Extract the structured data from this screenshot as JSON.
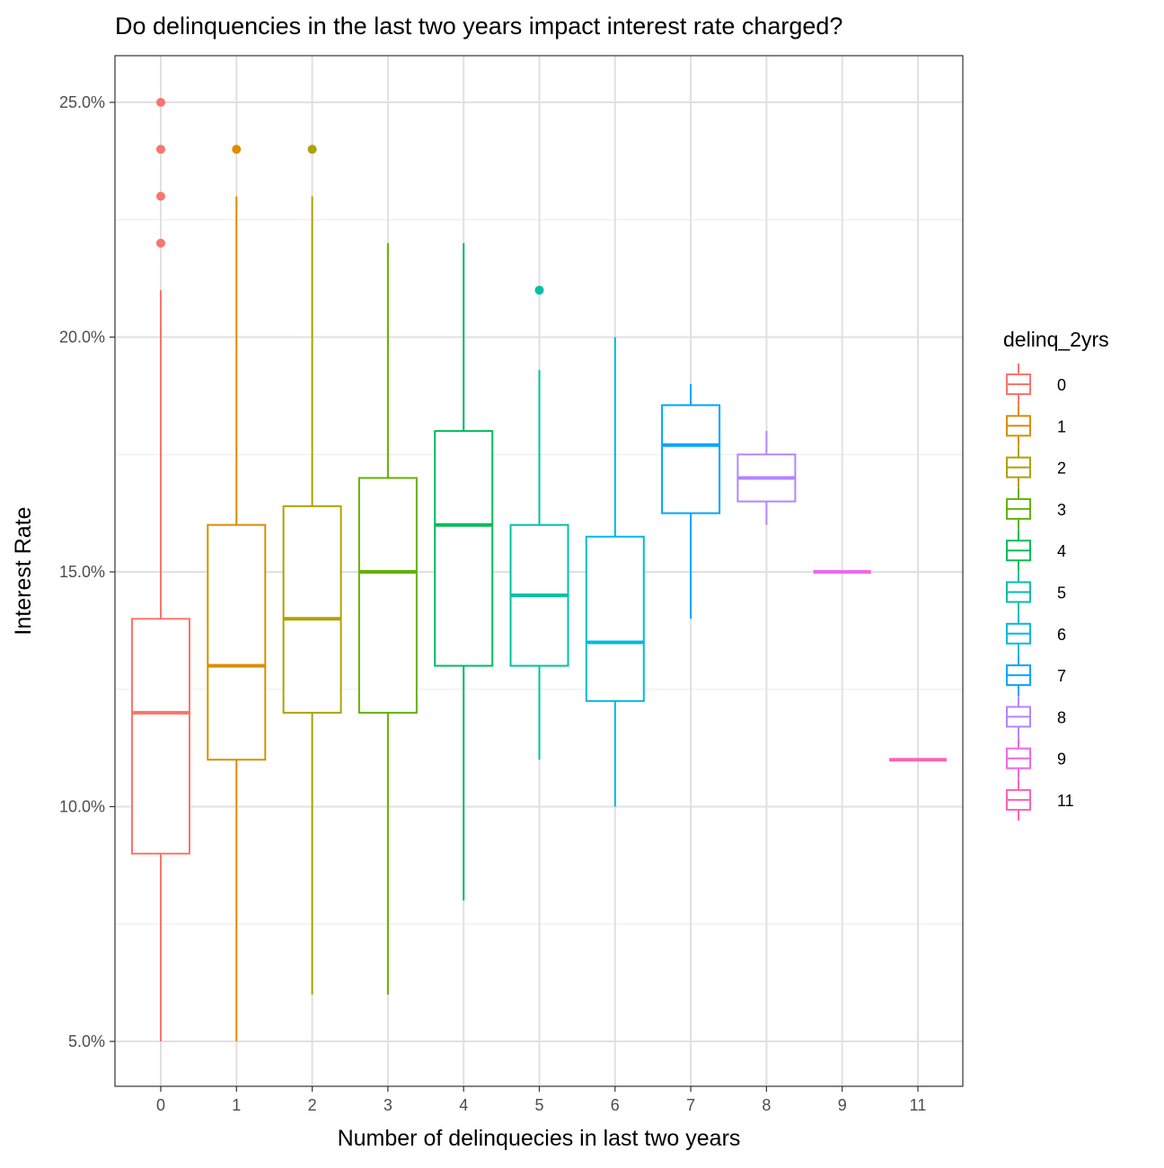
{
  "chart_data": {
    "type": "boxplot",
    "title": "Do delinquencies in the last two years impact interest rate charged?",
    "xlabel": "Number of delinquecies in last two years",
    "ylabel": "Interest Rate",
    "ylim": [
      4.0,
      26.0
    ],
    "yticks": [
      5,
      10,
      15,
      20,
      25
    ],
    "ytick_labels": [
      "5.0%",
      "10.0%",
      "15.0%",
      "20.0%",
      "25.0%"
    ],
    "grid": true,
    "legend": {
      "title": "delinq_2yrs",
      "placement": "right"
    },
    "categories": [
      "0",
      "1",
      "2",
      "3",
      "4",
      "5",
      "6",
      "7",
      "8",
      "9",
      "11"
    ],
    "colors": [
      "#F8766D",
      "#DB8E00",
      "#AEA200",
      "#64B200",
      "#00BD5C",
      "#00C1A7",
      "#00BADE",
      "#00A6FF",
      "#B385FF",
      "#EF67EB",
      "#FF63B6"
    ],
    "boxes": [
      {
        "min": 5,
        "q1": 9,
        "median": 12,
        "q3": 14,
        "max": 21,
        "outliers": [
          22,
          23,
          24,
          25
        ]
      },
      {
        "min": 5,
        "q1": 11,
        "median": 13,
        "q3": 16,
        "max": 23,
        "outliers": [
          24
        ]
      },
      {
        "min": 6,
        "q1": 12,
        "median": 14,
        "q3": 16.4,
        "max": 23,
        "outliers": [
          24
        ]
      },
      {
        "min": 6,
        "q1": 12,
        "median": 15,
        "q3": 17,
        "max": 22,
        "outliers": []
      },
      {
        "min": 8,
        "q1": 13,
        "median": 16,
        "q3": 18,
        "max": 22,
        "outliers": []
      },
      {
        "min": 11,
        "q1": 13,
        "median": 14.5,
        "q3": 16,
        "max": 19.3,
        "outliers": [
          21
        ]
      },
      {
        "min": 10,
        "q1": 12.25,
        "median": 13.5,
        "q3": 15.75,
        "max": 20,
        "outliers": []
      },
      {
        "min": 14,
        "q1": 16.25,
        "median": 17.7,
        "q3": 18.55,
        "max": 19,
        "outliers": []
      },
      {
        "min": 16,
        "q1": 16.5,
        "median": 17,
        "q3": 17.5,
        "max": 18,
        "outliers": []
      },
      {
        "min": 15,
        "q1": 15,
        "median": 15,
        "q3": 15,
        "max": 15,
        "outliers": []
      },
      {
        "min": 11,
        "q1": 11,
        "median": 11,
        "q3": 11,
        "max": 11,
        "outliers": []
      }
    ]
  }
}
